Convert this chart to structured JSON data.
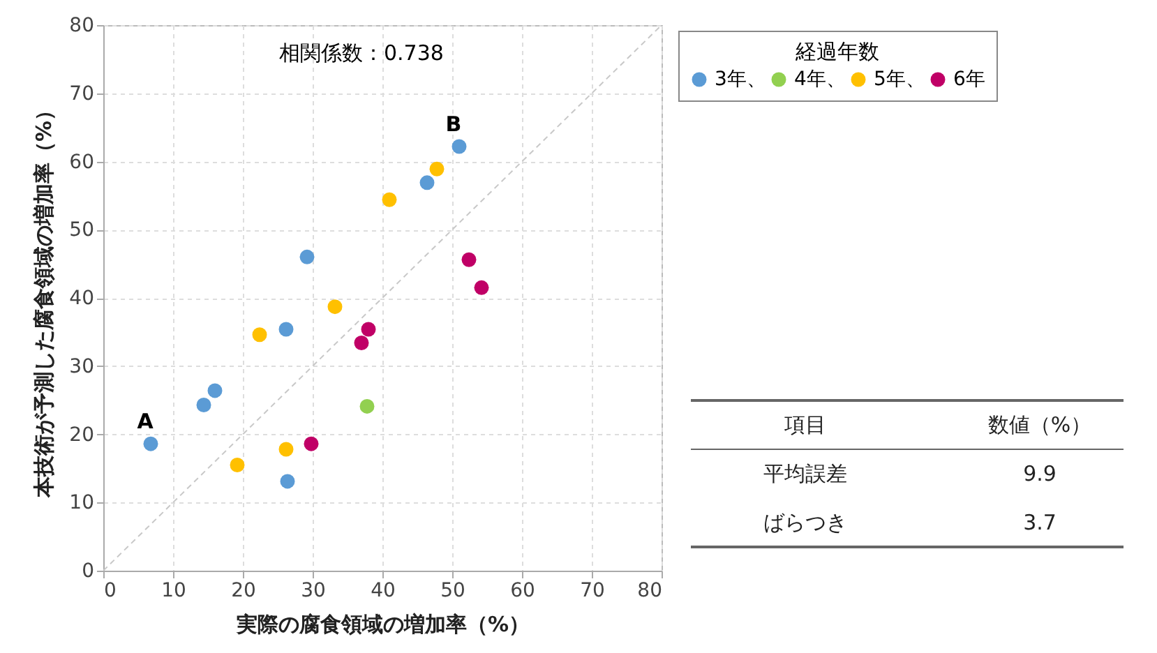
{
  "chart_data": [
    {
      "type": "scatter",
      "xlabel": "実際の腐食領域の増加率（%）",
      "ylabel": "本技術が予測した腐食領域の増加率（%）",
      "legend_title": "経過年数",
      "annotations": [
        "相関係数：0.738",
        {
          "text": "A",
          "x": 6.8,
          "y": 18.6
        },
        {
          "text": "B",
          "x": 51,
          "y": 62.2
        }
      ],
      "xlim": [
        0,
        80
      ],
      "ylim": [
        0,
        80
      ],
      "xticks": [
        0,
        10,
        20,
        30,
        40,
        50,
        60,
        70,
        80
      ],
      "yticks": [
        0,
        10,
        20,
        30,
        40,
        50,
        60,
        70,
        80
      ],
      "grid": true,
      "legend": "top right",
      "marker": "circle",
      "series": [
        {
          "name": "3年、",
          "color": "#5b9bd5",
          "x": [
            6.8,
            14.4,
            16,
            26.2,
            29.2,
            26.4,
            46.4,
            51
          ],
          "values": [
            18.6,
            24.3,
            26.4,
            35.4,
            46.0,
            13.1,
            56.9,
            62.2
          ]
        },
        {
          "name": "4年、",
          "color": "#92d050",
          "x": [
            37.8
          ],
          "values": [
            24.1
          ]
        },
        {
          "name": "5年、",
          "color": "#ffc000",
          "x": [
            19.2,
            22.4,
            26.2,
            33.2,
            41,
            47.8
          ],
          "values": [
            15.5,
            34.6,
            17.8,
            38.7,
            54.4,
            58.9
          ]
        },
        {
          "name": "6年",
          "color": "#c00066",
          "x": [
            29.8,
            37,
            38,
            52.4,
            54.2
          ],
          "values": [
            18.6,
            33.4,
            35.4,
            45.6,
            41.5
          ]
        },
        {
          "type": "line",
          "marker": "none",
          "color": "#c8c8c8",
          "line_style": "dashed",
          "x": [
            0,
            80
          ],
          "values": [
            0,
            80
          ]
        }
      ]
    },
    {
      "type": "other",
      "annotations": [
        "項目",
        "数値（%）"
      ],
      "categories": [
        "平均誤差",
        "ばらつき"
      ],
      "values": [
        9.9,
        3.7
      ],
      "data_labels": true
    }
  ]
}
